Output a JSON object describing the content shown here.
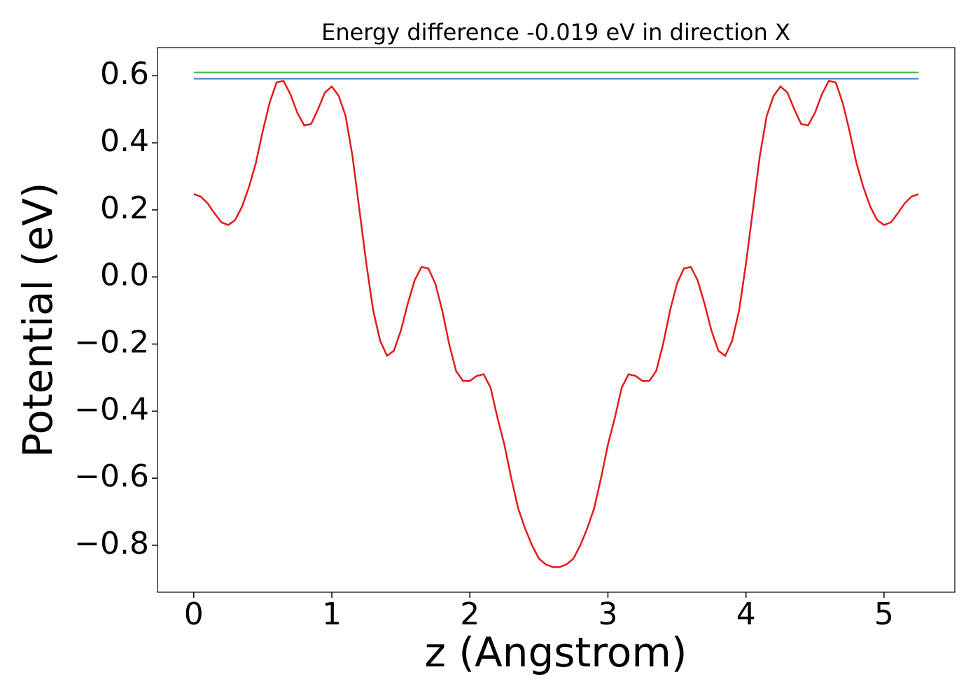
{
  "chart_data": {
    "type": "line",
    "title": "Energy difference -0.019 eV in direction X",
    "xlabel": "z (Angstrom)",
    "ylabel": "Potential (eV)",
    "x": [
      0,
      0.05,
      0.1,
      0.15,
      0.2,
      0.25,
      0.3,
      0.35,
      0.4,
      0.45,
      0.5,
      0.55,
      0.6,
      0.65,
      0.7,
      0.75,
      0.8,
      0.85,
      0.9,
      0.95,
      1,
      1.05,
      1.1,
      1.15,
      1.2,
      1.25,
      1.3,
      1.35,
      1.4,
      1.45,
      1.5,
      1.55,
      1.6,
      1.65,
      1.7,
      1.75,
      1.8,
      1.85,
      1.9,
      1.95,
      2,
      2.05,
      2.1,
      2.15,
      2.2,
      2.25,
      2.3,
      2.35,
      2.4,
      2.45,
      2.5,
      2.55,
      2.6,
      2.65,
      2.7,
      2.75,
      2.8,
      2.85,
      2.9,
      2.95,
      3,
      3.05,
      3.1,
      3.15,
      3.2,
      3.25,
      3.3,
      3.35,
      3.4,
      3.45,
      3.5,
      3.55,
      3.6,
      3.65,
      3.7,
      3.75,
      3.8,
      3.85,
      3.9,
      3.95,
      4,
      4.05,
      4.1,
      4.15,
      4.2,
      4.25,
      4.3,
      4.35,
      4.4,
      4.45,
      4.5,
      4.55,
      4.6,
      4.65,
      4.7,
      4.75,
      4.8,
      4.85,
      4.9,
      4.95,
      5,
      5.05,
      5.1,
      5.15,
      5.2,
      5.25
    ],
    "series": [
      {
        "color": "#e41a1c",
        "values": [
          0.247,
          0.24,
          0.22,
          0.19,
          0.163,
          0.155,
          0.17,
          0.21,
          0.268,
          0.34,
          0.435,
          0.52,
          0.58,
          0.585,
          0.545,
          0.49,
          0.452,
          0.456,
          0.5,
          0.55,
          0.568,
          0.54,
          0.48,
          0.36,
          0.2,
          0.04,
          -0.1,
          -0.19,
          -0.235,
          -0.22,
          -0.16,
          -0.08,
          -0.01,
          0.03,
          0.025,
          -0.02,
          -0.1,
          -0.2,
          -0.28,
          -0.31,
          -0.31,
          -0.295,
          -0.29,
          -0.33,
          -0.42,
          -0.5,
          -0.6,
          -0.69,
          -0.75,
          -0.8,
          -0.84,
          -0.857,
          -0.865,
          -0.865,
          -0.857,
          -0.84,
          -0.8,
          -0.75,
          -0.69,
          -0.6,
          -0.5,
          -0.42,
          -0.33,
          -0.29,
          -0.295,
          -0.31,
          -0.31,
          -0.28,
          -0.2,
          -0.1,
          -0.02,
          0.025,
          0.03,
          -0.01,
          -0.08,
          -0.16,
          -0.22,
          -0.235,
          -0.19,
          -0.1,
          0.04,
          0.2,
          0.36,
          0.48,
          0.54,
          0.568,
          0.55,
          0.5,
          0.456,
          0.452,
          0.49,
          0.545,
          0.585,
          0.58,
          0.52,
          0.435,
          0.34,
          0.268,
          0.21,
          0.17,
          0.155,
          0.163,
          0.19,
          0.22,
          0.24,
          0.247
        ]
      }
    ],
    "hlines": [
      {
        "y": 0.61,
        "x": [
          0,
          5.25
        ],
        "color": "#4daf4a"
      },
      {
        "y": 0.591,
        "x": [
          0,
          5.25
        ],
        "color": "#377eb8"
      }
    ],
    "xlim": [
      -0.2625,
      5.5125
    ],
    "ylim": [
      -0.94,
      0.684
    ],
    "xticks": [
      0,
      1,
      2,
      3,
      4,
      5
    ],
    "yticks": [
      {
        "value": -0.8,
        "label": "−0.8"
      },
      {
        "value": -0.6,
        "label": "−0.6"
      },
      {
        "value": -0.4,
        "label": "−0.4"
      },
      {
        "value": -0.2,
        "label": "−0.2"
      },
      {
        "value": 0,
        "label": "0.0"
      },
      0.2,
      0.4,
      0.6
    ]
  }
}
